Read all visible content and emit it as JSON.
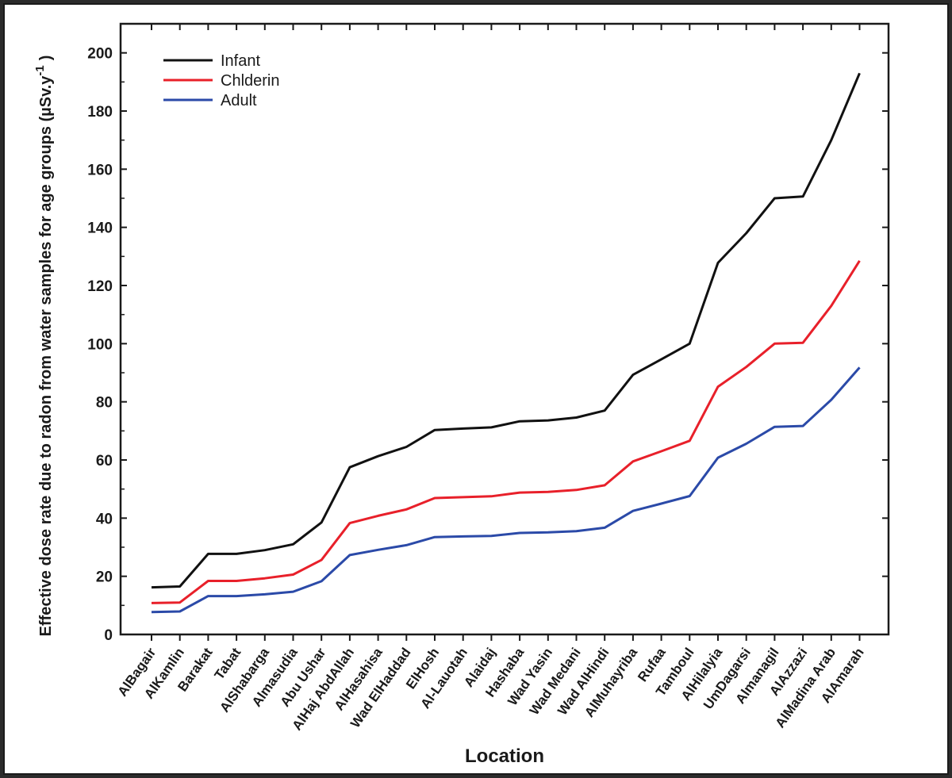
{
  "chart_data": {
    "type": "line",
    "title": "",
    "xlabel": "Location",
    "ylabel_main": "Effective dose rate due to radon from water samples for age groups (µSv.y",
    "ylabel_sup": "-1",
    "ylabel_close": ")",
    "ylim": [
      0,
      210
    ],
    "yticks": [
      0,
      20,
      40,
      60,
      80,
      100,
      120,
      140,
      160,
      180,
      200
    ],
    "categories": [
      "AlBagair",
      "AlKamlin",
      "Barakat",
      "Tabat",
      "AlShabarga",
      "Almasudia",
      "Abu Ushar",
      "AlHaj AbdAllah",
      "AlHasahisa",
      "Wad ElHaddad",
      "ElHosh",
      "Al-Lauotah",
      "Alaidaj",
      "Hashaba",
      "Wad Yasin",
      "Wad Medani",
      "Wad AlHindi",
      "AlMuhayriba",
      "Rufaa",
      "Tamboul",
      "AlHilalyia",
      "UmDagarsi",
      "Almanagil",
      "AlAzzazi",
      "AlMadina Arab",
      "AlAmarah"
    ],
    "series": [
      {
        "name": "Infant",
        "color": "#111111",
        "values": [
          16.2,
          16.5,
          27.7,
          27.7,
          29.0,
          31.0,
          38.5,
          57.5,
          61.3,
          64.5,
          70.3,
          70.8,
          71.2,
          73.3,
          73.6,
          74.6,
          77.0,
          89.3,
          94.6,
          100.0,
          127.8,
          138.0,
          150.0,
          150.6,
          170.0,
          193.0
        ]
      },
      {
        "name": "Chlderin",
        "color": "#e8202a",
        "values": [
          10.8,
          11.0,
          18.4,
          18.4,
          19.3,
          20.6,
          25.6,
          38.3,
          40.8,
          43.0,
          46.9,
          47.2,
          47.5,
          48.8,
          49.0,
          49.7,
          51.3,
          59.5,
          63.0,
          66.6,
          85.2,
          92.0,
          100.0,
          100.3,
          113.0,
          128.5
        ]
      },
      {
        "name": "Adult",
        "color": "#2b4aa8",
        "values": [
          7.7,
          7.9,
          13.2,
          13.2,
          13.8,
          14.7,
          18.3,
          27.3,
          29.1,
          30.7,
          33.5,
          33.7,
          33.9,
          34.9,
          35.1,
          35.5,
          36.7,
          42.5,
          45.0,
          47.6,
          60.8,
          65.6,
          71.4,
          71.7,
          80.7,
          91.8
        ]
      }
    ],
    "legend_position": "top-left"
  }
}
